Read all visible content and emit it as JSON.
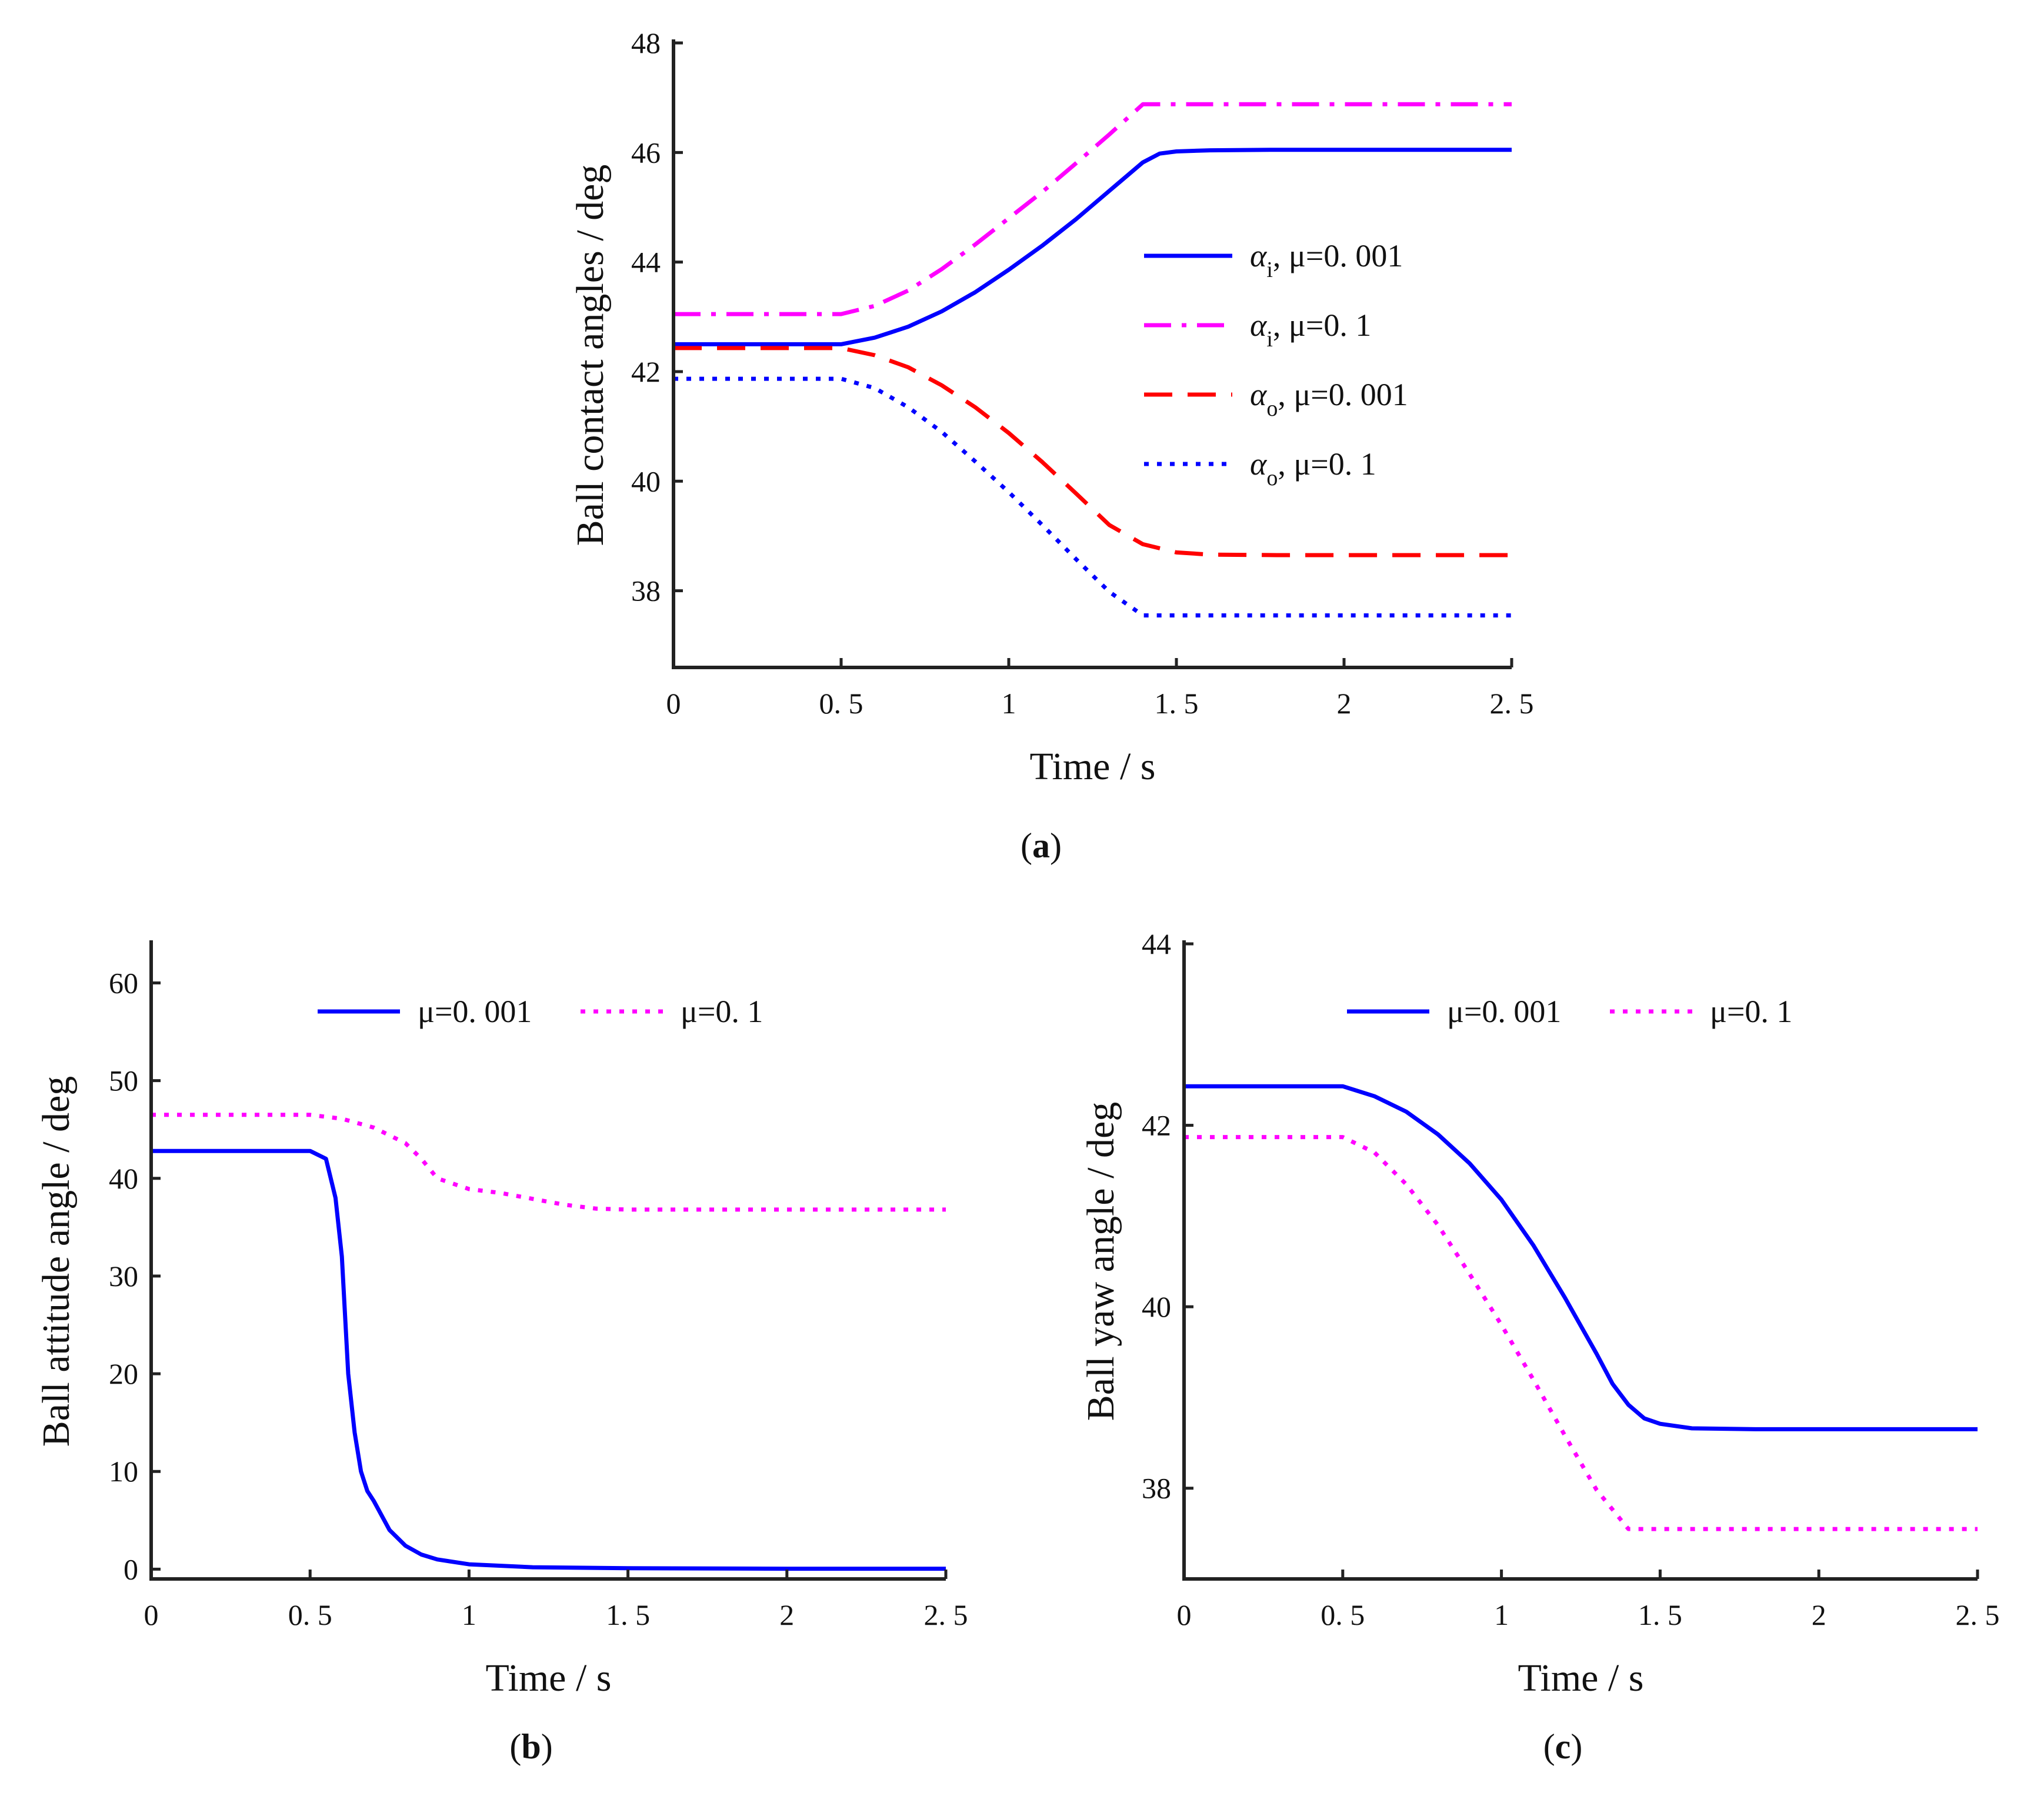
{
  "chart_data": [
    {
      "id": "a",
      "type": "line",
      "caption_letter": "a",
      "xlabel": "Time / s",
      "ylabel": "Ball contact angles / deg",
      "xlim": [
        0,
        2.5
      ],
      "ylim": [
        36.6,
        48
      ],
      "xticks": [
        0,
        0.5,
        1,
        1.5,
        2,
        2.5
      ],
      "xtick_labels": [
        "0",
        "0. 5",
        "1",
        "1. 5",
        "2",
        "2. 5"
      ],
      "yticks": [
        38,
        40,
        42,
        44,
        46,
        48
      ],
      "ytick_labels": [
        "38",
        "40",
        "42",
        "44",
        "46",
        "48"
      ],
      "legend_position": "right",
      "series": [
        {
          "name": "αi, μ=0. 001",
          "sym": "α",
          "sub": "i",
          "rest": ", μ=0. 001",
          "color": "#0000ff",
          "dash": "solid",
          "x": [
            0,
            0.5,
            0.6,
            0.7,
            0.8,
            0.9,
            1.0,
            1.1,
            1.2,
            1.3,
            1.4,
            1.45,
            1.5,
            1.6,
            1.8,
            2.0,
            2.5
          ],
          "y": [
            42.5,
            42.5,
            42.62,
            42.82,
            43.1,
            43.45,
            43.86,
            44.3,
            44.78,
            45.3,
            45.82,
            45.98,
            46.02,
            46.04,
            46.05,
            46.05,
            46.05
          ]
        },
        {
          "name": "αi, μ=0. 1",
          "sym": "α",
          "sub": "i",
          "rest": ", μ=0. 1",
          "color": "#ff00ff",
          "dash": "dashdot",
          "x": [
            0,
            0.5,
            0.6,
            0.7,
            0.8,
            0.9,
            1.0,
            1.1,
            1.2,
            1.3,
            1.4,
            2.5
          ],
          "y": [
            43.05,
            43.05,
            43.2,
            43.48,
            43.87,
            44.32,
            44.8,
            45.28,
            45.8,
            46.33,
            46.88,
            46.88
          ]
        },
        {
          "name": "αo, μ=0. 001",
          "sym": "α",
          "sub": "o",
          "rest": ", μ=0. 001",
          "color": "#ff0000",
          "dash": "dashed",
          "x": [
            0,
            0.5,
            0.6,
            0.7,
            0.8,
            0.9,
            1.0,
            1.1,
            1.2,
            1.3,
            1.4,
            1.5,
            1.6,
            1.8,
            2.0,
            2.5
          ],
          "y": [
            42.43,
            42.43,
            42.3,
            42.08,
            41.75,
            41.35,
            40.88,
            40.35,
            39.78,
            39.2,
            38.85,
            38.7,
            38.66,
            38.65,
            38.65,
            38.65
          ]
        },
        {
          "name": "αo, μ=0. 1",
          "sym": "α",
          "sub": "o",
          "rest": ", μ=0. 1",
          "color": "#0000ff",
          "dash": "dotted",
          "x": [
            0,
            0.5,
            0.6,
            0.7,
            0.8,
            0.9,
            1.0,
            1.1,
            1.2,
            1.3,
            1.4,
            2.5
          ],
          "y": [
            41.87,
            41.87,
            41.7,
            41.35,
            40.9,
            40.36,
            39.8,
            39.2,
            38.58,
            37.98,
            37.55,
            37.55
          ]
        }
      ]
    },
    {
      "id": "b",
      "type": "line",
      "caption_letter": "b",
      "xlabel": "Time / s",
      "ylabel": "Ball attitude angle / deg",
      "xlim": [
        0,
        2.5
      ],
      "ylim": [
        -1,
        64
      ],
      "xticks": [
        0,
        0.5,
        1,
        1.5,
        2,
        2.5
      ],
      "xtick_labels": [
        "0",
        "0. 5",
        "1",
        "1. 5",
        "2",
        "2. 5"
      ],
      "yticks": [
        0,
        10,
        20,
        30,
        40,
        50,
        60
      ],
      "ytick_labels": [
        "0",
        "10",
        "20",
        "30",
        "40",
        "50",
        "60"
      ],
      "legend_position": "top",
      "series": [
        {
          "name": "μ=0. 001",
          "sym": "",
          "sub": "",
          "rest": "μ=0. 001",
          "color": "#0000ff",
          "dash": "solid",
          "x": [
            0,
            0.5,
            0.55,
            0.58,
            0.6,
            0.62,
            0.64,
            0.66,
            0.68,
            0.7,
            0.75,
            0.8,
            0.85,
            0.9,
            1.0,
            1.2,
            1.5,
            2.0,
            2.5
          ],
          "y": [
            42.8,
            42.8,
            42,
            38,
            32,
            20,
            14,
            10,
            8,
            7,
            4,
            2.4,
            1.5,
            1.0,
            0.5,
            0.2,
            0.1,
            0.05,
            0.05
          ]
        },
        {
          "name": "μ=0. 1",
          "sym": "",
          "sub": "",
          "rest": "μ=0. 1",
          "color": "#ff00ff",
          "dash": "dotted",
          "x": [
            0,
            0.5,
            0.6,
            0.7,
            0.8,
            0.85,
            0.9,
            1.0,
            1.1,
            1.2,
            1.3,
            1.4,
            1.5,
            2.0,
            2.5
          ],
          "y": [
            46.5,
            46.5,
            46.1,
            45.2,
            43.6,
            42,
            40,
            38.9,
            38.5,
            37.9,
            37.3,
            36.9,
            36.8,
            36.8,
            36.8
          ]
        }
      ]
    },
    {
      "id": "c",
      "type": "line",
      "caption_letter": "c",
      "xlabel": "Time / s",
      "ylabel": "Ball yaw angle / deg",
      "xlim": [
        0,
        2.5
      ],
      "ylim": [
        37,
        44
      ],
      "xticks": [
        0,
        0.5,
        1,
        1.5,
        2,
        2.5
      ],
      "xtick_labels": [
        "0",
        "0. 5",
        "1",
        "1. 5",
        "2",
        "2. 5"
      ],
      "yticks": [
        38,
        40,
        42,
        44
      ],
      "ytick_labels": [
        "38",
        "40",
        "42",
        "44"
      ],
      "legend_position": "top",
      "series": [
        {
          "name": "μ=0. 001",
          "sym": "",
          "sub": "",
          "rest": "μ=0. 001",
          "color": "#0000ff",
          "dash": "solid",
          "x": [
            0,
            0.5,
            0.6,
            0.7,
            0.8,
            0.9,
            1.0,
            1.1,
            1.2,
            1.3,
            1.35,
            1.4,
            1.45,
            1.5,
            1.6,
            1.8,
            2.0,
            2.5
          ],
          "y": [
            42.43,
            42.43,
            42.32,
            42.15,
            41.9,
            41.58,
            41.18,
            40.68,
            40.1,
            39.48,
            39.15,
            38.92,
            38.77,
            38.71,
            38.66,
            38.65,
            38.65,
            38.65
          ]
        },
        {
          "name": "μ=0. 1",
          "sym": "",
          "sub": "",
          "rest": "μ=0. 1",
          "color": "#ff00ff",
          "dash": "dotted",
          "x": [
            0,
            0.5,
            0.6,
            0.7,
            0.8,
            0.9,
            1.0,
            1.1,
            1.2,
            1.3,
            1.4,
            2.5
          ],
          "y": [
            41.87,
            41.87,
            41.7,
            41.35,
            40.9,
            40.36,
            39.8,
            39.2,
            38.58,
            37.98,
            37.55,
            37.55
          ]
        }
      ]
    }
  ]
}
